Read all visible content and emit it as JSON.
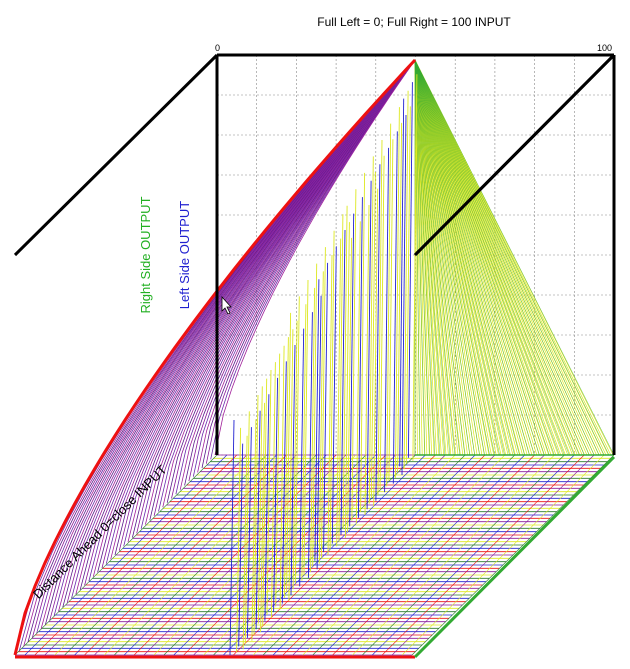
{
  "chart_data": {
    "type": "surface",
    "title": "Full Left = 0; Full Right = 100 INPUT",
    "x_axis_label": "Full Left = 0; Full Right = 100 INPUT",
    "x_range": [
      0,
      100
    ],
    "x_tick_labels": [
      "0",
      "100"
    ],
    "depth_axis_label": "Distance Ahead 0=close  INPUT",
    "output_labels": [
      "Right Side OUTPUT",
      "Left Side OUTPUT"
    ],
    "peak_x": 100,
    "grid": true,
    "colors": {
      "right_side_output": "#22b022",
      "left_side_output": "#2020d0",
      "rising_curve": "#ee1111",
      "mesh_purple": "#8a1a9a",
      "mesh_yellow": "#dde820",
      "mesh_green": "#33aa33",
      "grid": "#888888",
      "frame": "#000000"
    }
  }
}
